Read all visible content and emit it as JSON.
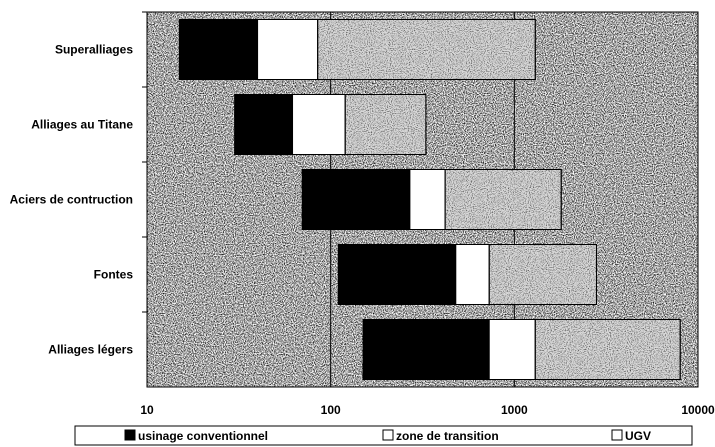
{
  "chart_data": {
    "type": "bar",
    "orientation": "horizontal",
    "stacked": true,
    "x_scale": "log",
    "xlim": [
      10,
      10000
    ],
    "x_ticks": [
      "10",
      "100",
      "1000",
      "10000"
    ],
    "grid": "vertical lines at decades",
    "legend_position": "bottom",
    "categories": [
      "Superalliages",
      "Alliages au Titane",
      "Aciers de contruction",
      "Fontes",
      "Alliages légers"
    ],
    "series": [
      {
        "name": "usinage conventionnel",
        "color": "#000000",
        "ranges": [
          [
            15,
            40
          ],
          [
            30,
            62
          ],
          [
            70,
            270
          ],
          [
            110,
            480
          ],
          [
            150,
            730
          ]
        ]
      },
      {
        "name": "zone de transition",
        "color": "#ffffff",
        "ranges": [
          [
            40,
            85
          ],
          [
            62,
            120
          ],
          [
            270,
            420
          ],
          [
            480,
            730
          ],
          [
            730,
            1300
          ]
        ]
      },
      {
        "name": "UGV",
        "color": "#d9d9d9",
        "ranges": [
          [
            85,
            1300
          ],
          [
            120,
            330
          ],
          [
            420,
            1800
          ],
          [
            730,
            2800
          ],
          [
            1300,
            8000
          ]
        ]
      }
    ]
  }
}
